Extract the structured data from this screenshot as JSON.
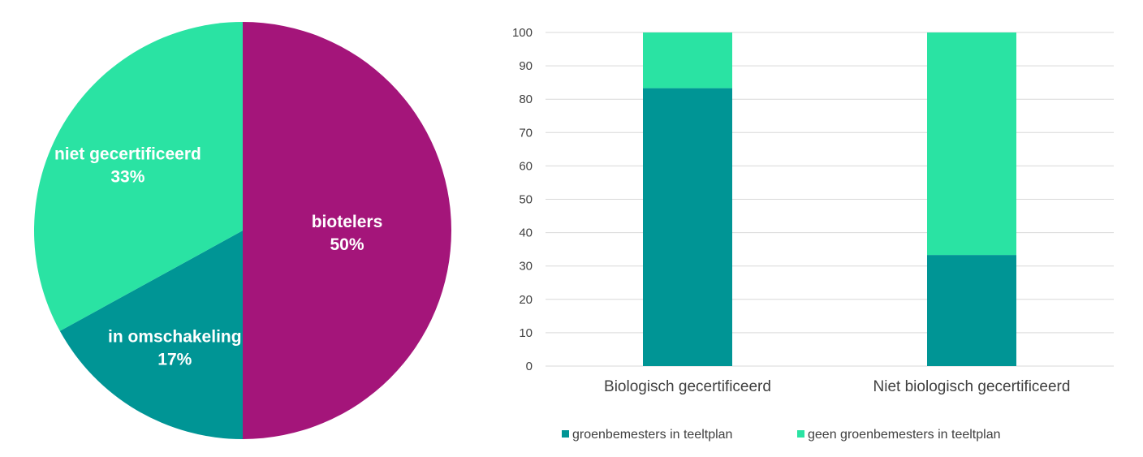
{
  "colors": {
    "biotelers": "#a4157a",
    "in_omschakeling": "#009595",
    "niet_gecertificeerd": "#2ae3a3",
    "groenbemesters": "#009595",
    "geen_groenbemesters": "#2ae3a3",
    "grid": "#d9d9d9",
    "text": "#404040"
  },
  "chart_data": [
    {
      "type": "pie",
      "slices": [
        {
          "label": "biotelers",
          "value": 50,
          "pct_label": "50%",
          "color": "#a4157a"
        },
        {
          "label": "in omschakeling",
          "value": 17,
          "pct_label": "17%",
          "color": "#009595"
        },
        {
          "label": "niet gecertificeerd",
          "value": 33,
          "pct_label": "33%",
          "color": "#2ae3a3"
        }
      ],
      "start": "12 o'clock",
      "direction": "clockwise"
    },
    {
      "type": "bar",
      "stacked": true,
      "categories": [
        "Biologisch gecertificeerd",
        "Niet biologisch gecertificeerd"
      ],
      "series": [
        {
          "name": "groenbemesters in teeltplan",
          "values": [
            83.3,
            33.3
          ],
          "color": "#009595"
        },
        {
          "name": "geen groenbemesters in teeltplan",
          "values": [
            16.7,
            66.7
          ],
          "color": "#2ae3a3"
        }
      ],
      "ylim": [
        0,
        100
      ],
      "yticks": [
        "0",
        "10",
        "20",
        "30",
        "40",
        "50",
        "60",
        "70",
        "80",
        "90",
        "100"
      ],
      "grid": true,
      "legend": "bottom"
    }
  ]
}
